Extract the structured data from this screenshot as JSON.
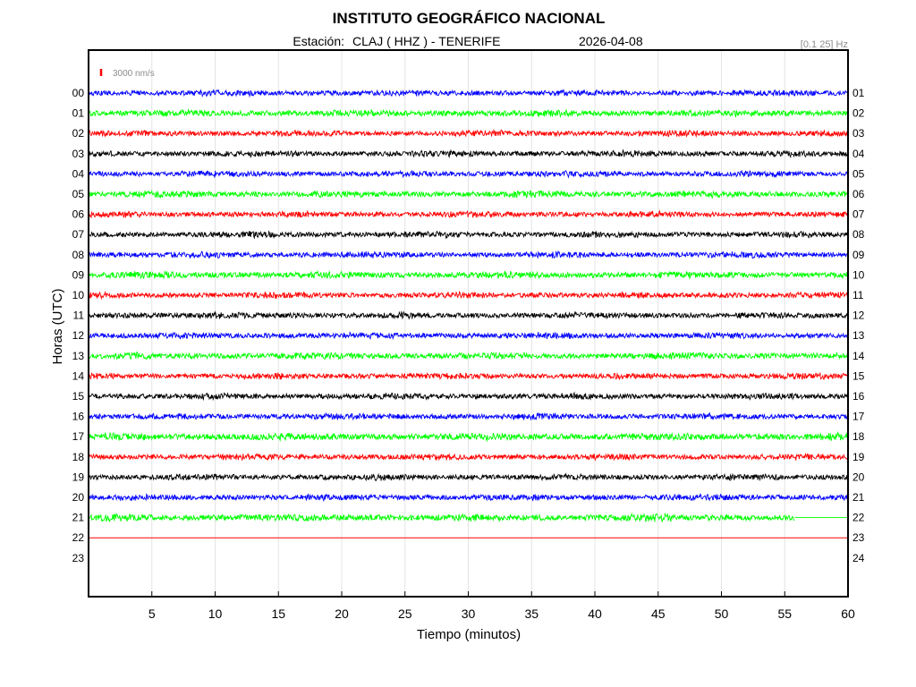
{
  "header": {
    "title": "INSTITUTO GEOGRÁFICO NACIONAL",
    "station_label": "Estación:",
    "station": "CLAJ ( HHZ ) - TENERIFE",
    "date": "2026-04-08",
    "band": "[0.1 25] Hz"
  },
  "scale_bar": {
    "label": "3000 nm/s",
    "color": "#ff0000"
  },
  "chart_data": {
    "type": "line",
    "xlabel": "Tiempo (minutos)",
    "ylabel": "Horas (UTC)",
    "xlim": [
      0,
      60
    ],
    "x_ticks": [
      5,
      10,
      15,
      20,
      25,
      30,
      35,
      40,
      45,
      50,
      55,
      60
    ],
    "grid": true,
    "left_labels": [
      "00",
      "01",
      "02",
      "03",
      "04",
      "05",
      "06",
      "07",
      "08",
      "09",
      "10",
      "11",
      "12",
      "13",
      "14",
      "15",
      "16",
      "17",
      "18",
      "19",
      "20",
      "21",
      "22",
      "23"
    ],
    "right_labels": [
      "01",
      "02",
      "03",
      "04",
      "05",
      "06",
      "07",
      "08",
      "09",
      "10",
      "11",
      "12",
      "13",
      "14",
      "15",
      "16",
      "17",
      "18",
      "19",
      "20",
      "21",
      "22",
      "23",
      "24"
    ],
    "trace_colors": [
      "#0000ff",
      "#00ff00",
      "#ff0000",
      "#000000"
    ],
    "traces": [
      {
        "hour": "00",
        "color": "#0000ff",
        "amplitude": 1.0,
        "recorded_until_min": 60
      },
      {
        "hour": "01",
        "color": "#00ff00",
        "amplitude": 1.1,
        "recorded_until_min": 60
      },
      {
        "hour": "02",
        "color": "#ff0000",
        "amplitude": 1.0,
        "recorded_until_min": 60
      },
      {
        "hour": "03",
        "color": "#000000",
        "amplitude": 1.0,
        "recorded_until_min": 60
      },
      {
        "hour": "04",
        "color": "#0000ff",
        "amplitude": 1.0,
        "recorded_until_min": 60
      },
      {
        "hour": "05",
        "color": "#00ff00",
        "amplitude": 1.1,
        "recorded_until_min": 60
      },
      {
        "hour": "06",
        "color": "#ff0000",
        "amplitude": 1.0,
        "recorded_until_min": 60
      },
      {
        "hour": "07",
        "color": "#000000",
        "amplitude": 1.0,
        "recorded_until_min": 60
      },
      {
        "hour": "08",
        "color": "#0000ff",
        "amplitude": 1.0,
        "recorded_until_min": 60
      },
      {
        "hour": "09",
        "color": "#00ff00",
        "amplitude": 1.1,
        "recorded_until_min": 60
      },
      {
        "hour": "10",
        "color": "#ff0000",
        "amplitude": 1.0,
        "recorded_until_min": 60
      },
      {
        "hour": "11",
        "color": "#000000",
        "amplitude": 1.0,
        "recorded_until_min": 60
      },
      {
        "hour": "12",
        "color": "#0000ff",
        "amplitude": 1.0,
        "recorded_until_min": 60
      },
      {
        "hour": "13",
        "color": "#00ff00",
        "amplitude": 1.1,
        "recorded_until_min": 60
      },
      {
        "hour": "14",
        "color": "#ff0000",
        "amplitude": 1.0,
        "recorded_until_min": 60
      },
      {
        "hour": "15",
        "color": "#000000",
        "amplitude": 1.0,
        "recorded_until_min": 60
      },
      {
        "hour": "16",
        "color": "#0000ff",
        "amplitude": 1.0,
        "recorded_until_min": 60
      },
      {
        "hour": "17",
        "color": "#00ff00",
        "amplitude": 1.2,
        "recorded_until_min": 60
      },
      {
        "hour": "18",
        "color": "#ff0000",
        "amplitude": 1.0,
        "recorded_until_min": 60
      },
      {
        "hour": "19",
        "color": "#000000",
        "amplitude": 1.0,
        "recorded_until_min": 60
      },
      {
        "hour": "20",
        "color": "#0000ff",
        "amplitude": 1.0,
        "recorded_until_min": 60
      },
      {
        "hour": "21",
        "color": "#00ff00",
        "amplitude": 1.2,
        "recorded_until_min": 55.8
      },
      {
        "hour": "22",
        "color": "#ff0000",
        "amplitude": 0,
        "recorded_until_min": 0
      }
    ]
  }
}
